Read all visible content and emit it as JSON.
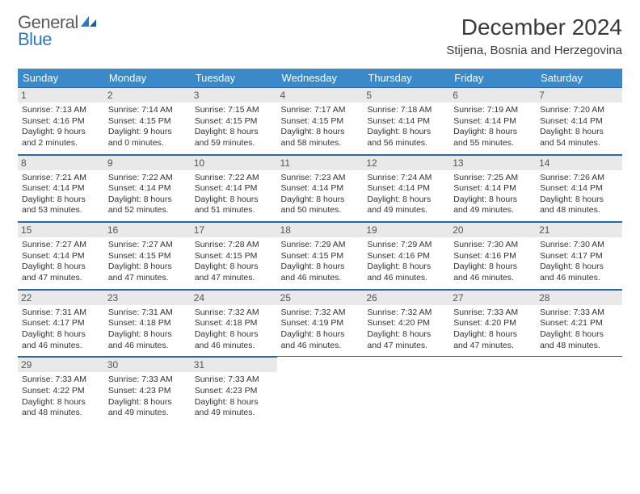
{
  "logo": {
    "text1": "General",
    "text2": "Blue"
  },
  "header": {
    "title": "December 2024",
    "location": "Stijena, Bosnia and Herzegovina"
  },
  "colors": {
    "header_bg": "#3a89c9",
    "header_text": "#ffffff",
    "daybar_bg": "#e9e9e9",
    "rule": "#2a6aa2",
    "logo_gray": "#5b5b5b",
    "logo_blue": "#2b79c2"
  },
  "weekdays": [
    "Sunday",
    "Monday",
    "Tuesday",
    "Wednesday",
    "Thursday",
    "Friday",
    "Saturday"
  ],
  "weeks": [
    [
      {
        "n": "1",
        "sr": "7:13 AM",
        "ss": "4:16 PM",
        "dl": "9 hours and 2 minutes."
      },
      {
        "n": "2",
        "sr": "7:14 AM",
        "ss": "4:15 PM",
        "dl": "9 hours and 0 minutes."
      },
      {
        "n": "3",
        "sr": "7:15 AM",
        "ss": "4:15 PM",
        "dl": "8 hours and 59 minutes."
      },
      {
        "n": "4",
        "sr": "7:17 AM",
        "ss": "4:15 PM",
        "dl": "8 hours and 58 minutes."
      },
      {
        "n": "5",
        "sr": "7:18 AM",
        "ss": "4:14 PM",
        "dl": "8 hours and 56 minutes."
      },
      {
        "n": "6",
        "sr": "7:19 AM",
        "ss": "4:14 PM",
        "dl": "8 hours and 55 minutes."
      },
      {
        "n": "7",
        "sr": "7:20 AM",
        "ss": "4:14 PM",
        "dl": "8 hours and 54 minutes."
      }
    ],
    [
      {
        "n": "8",
        "sr": "7:21 AM",
        "ss": "4:14 PM",
        "dl": "8 hours and 53 minutes."
      },
      {
        "n": "9",
        "sr": "7:22 AM",
        "ss": "4:14 PM",
        "dl": "8 hours and 52 minutes."
      },
      {
        "n": "10",
        "sr": "7:22 AM",
        "ss": "4:14 PM",
        "dl": "8 hours and 51 minutes."
      },
      {
        "n": "11",
        "sr": "7:23 AM",
        "ss": "4:14 PM",
        "dl": "8 hours and 50 minutes."
      },
      {
        "n": "12",
        "sr": "7:24 AM",
        "ss": "4:14 PM",
        "dl": "8 hours and 49 minutes."
      },
      {
        "n": "13",
        "sr": "7:25 AM",
        "ss": "4:14 PM",
        "dl": "8 hours and 49 minutes."
      },
      {
        "n": "14",
        "sr": "7:26 AM",
        "ss": "4:14 PM",
        "dl": "8 hours and 48 minutes."
      }
    ],
    [
      {
        "n": "15",
        "sr": "7:27 AM",
        "ss": "4:14 PM",
        "dl": "8 hours and 47 minutes."
      },
      {
        "n": "16",
        "sr": "7:27 AM",
        "ss": "4:15 PM",
        "dl": "8 hours and 47 minutes."
      },
      {
        "n": "17",
        "sr": "7:28 AM",
        "ss": "4:15 PM",
        "dl": "8 hours and 47 minutes."
      },
      {
        "n": "18",
        "sr": "7:29 AM",
        "ss": "4:15 PM",
        "dl": "8 hours and 46 minutes."
      },
      {
        "n": "19",
        "sr": "7:29 AM",
        "ss": "4:16 PM",
        "dl": "8 hours and 46 minutes."
      },
      {
        "n": "20",
        "sr": "7:30 AM",
        "ss": "4:16 PM",
        "dl": "8 hours and 46 minutes."
      },
      {
        "n": "21",
        "sr": "7:30 AM",
        "ss": "4:17 PM",
        "dl": "8 hours and 46 minutes."
      }
    ],
    [
      {
        "n": "22",
        "sr": "7:31 AM",
        "ss": "4:17 PM",
        "dl": "8 hours and 46 minutes."
      },
      {
        "n": "23",
        "sr": "7:31 AM",
        "ss": "4:18 PM",
        "dl": "8 hours and 46 minutes."
      },
      {
        "n": "24",
        "sr": "7:32 AM",
        "ss": "4:18 PM",
        "dl": "8 hours and 46 minutes."
      },
      {
        "n": "25",
        "sr": "7:32 AM",
        "ss": "4:19 PM",
        "dl": "8 hours and 46 minutes."
      },
      {
        "n": "26",
        "sr": "7:32 AM",
        "ss": "4:20 PM",
        "dl": "8 hours and 47 minutes."
      },
      {
        "n": "27",
        "sr": "7:33 AM",
        "ss": "4:20 PM",
        "dl": "8 hours and 47 minutes."
      },
      {
        "n": "28",
        "sr": "7:33 AM",
        "ss": "4:21 PM",
        "dl": "8 hours and 48 minutes."
      }
    ],
    [
      {
        "n": "29",
        "sr": "7:33 AM",
        "ss": "4:22 PM",
        "dl": "8 hours and 48 minutes."
      },
      {
        "n": "30",
        "sr": "7:33 AM",
        "ss": "4:23 PM",
        "dl": "8 hours and 49 minutes."
      },
      {
        "n": "31",
        "sr": "7:33 AM",
        "ss": "4:23 PM",
        "dl": "8 hours and 49 minutes."
      },
      null,
      null,
      null,
      null
    ]
  ],
  "labels": {
    "sunrise": "Sunrise: ",
    "sunset": "Sunset: ",
    "daylight": "Daylight: "
  }
}
